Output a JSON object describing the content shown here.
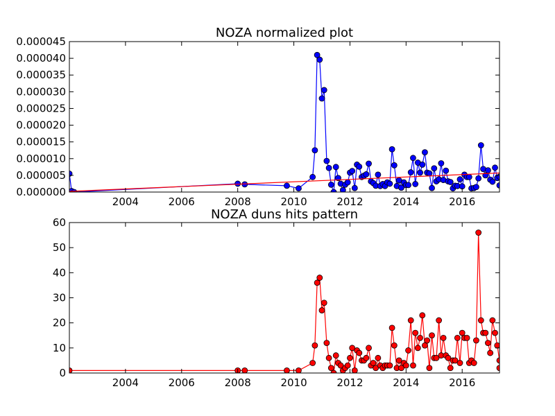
{
  "chart_data": [
    {
      "type": "line",
      "title": "NOZA normalized plot",
      "xlabel": "",
      "ylabel": "",
      "xlim": [
        2002.0,
        2017.33
      ],
      "ylim": [
        0,
        4.5e-05
      ],
      "xticks": [
        2004,
        2006,
        2008,
        2010,
        2012,
        2014,
        2016
      ],
      "xtick_labels": [
        "2004",
        "2006",
        "2008",
        "2010",
        "2012",
        "2014",
        "2016"
      ],
      "yticks": [
        0,
        5e-06,
        1e-05,
        1.5e-05,
        2e-05,
        2.5e-05,
        3e-05,
        3.5e-05,
        4e-05,
        4.5e-05
      ],
      "ytick_labels": [
        "0.000000",
        "0.000005",
        "0.000010",
        "0.000015",
        "0.000020",
        "0.000025",
        "0.000030",
        "0.000035",
        "0.000040",
        "0.000045"
      ],
      "grid": false,
      "series": [
        {
          "color": "#0000ff",
          "marker": "circle",
          "points": [
            [
              2002.0,
              5.5e-06
            ],
            [
              2002.08,
              3e-07
            ],
            [
              2002.17,
              0
            ],
            [
              2008.0,
              2.5e-06
            ],
            [
              2008.25,
              2.3e-06
            ],
            [
              2009.75,
              1.9e-06
            ],
            [
              2010.17,
              1.1e-06
            ],
            [
              2010.67,
              4.5e-06
            ],
            [
              2010.75,
              1.25e-05
            ],
            [
              2010.83,
              4.1e-05
            ],
            [
              2010.92,
              3.96e-05
            ],
            [
              2011.0,
              2.8e-05
            ],
            [
              2011.08,
              3.05e-05
            ],
            [
              2011.17,
              9.3e-06
            ],
            [
              2011.25,
              7.2e-06
            ],
            [
              2011.33,
              2.2e-06
            ],
            [
              2011.42,
              0
            ],
            [
              2011.5,
              7.5e-06
            ],
            [
              2011.58,
              4.2e-06
            ],
            [
              2011.67,
              2.5e-06
            ],
            [
              2011.75,
              6e-07
            ],
            [
              2011.83,
              2.2e-06
            ],
            [
              2011.92,
              2.9e-06
            ],
            [
              2012.0,
              5.8e-06
            ],
            [
              2012.08,
              6.3e-06
            ],
            [
              2012.17,
              1.2e-06
            ],
            [
              2012.25,
              8.2e-06
            ],
            [
              2012.33,
              7.6e-06
            ],
            [
              2012.42,
              4.5e-06
            ],
            [
              2012.5,
              4.9e-06
            ],
            [
              2012.58,
              5.3e-06
            ],
            [
              2012.67,
              8.5e-06
            ],
            [
              2012.75,
              3.2e-06
            ],
            [
              2012.83,
              2.7e-06
            ],
            [
              2012.92,
              1.9e-06
            ],
            [
              2013.0,
              5.2e-06
            ],
            [
              2013.08,
              1.8e-06
            ],
            [
              2013.17,
              2.4e-06
            ],
            [
              2013.25,
              1.8e-06
            ],
            [
              2013.33,
              2.9e-06
            ],
            [
              2013.42,
              2.5e-06
            ],
            [
              2013.5,
              1.28e-05
            ],
            [
              2013.58,
              8e-06
            ],
            [
              2013.67,
              1.8e-06
            ],
            [
              2013.75,
              3.5e-06
            ],
            [
              2013.83,
              1.3e-06
            ],
            [
              2013.92,
              2.9e-06
            ],
            [
              2014.0,
              2.1e-06
            ],
            [
              2014.08,
              2.1e-06
            ],
            [
              2014.17,
              5.9e-06
            ],
            [
              2014.25,
              1.02e-05
            ],
            [
              2014.33,
              2.4e-06
            ],
            [
              2014.42,
              8.8e-06
            ],
            [
              2014.5,
              5.8e-06
            ],
            [
              2014.58,
              8.2e-06
            ],
            [
              2014.67,
              1.19e-05
            ],
            [
              2014.75,
              5.8e-06
            ],
            [
              2014.83,
              5.6e-06
            ],
            [
              2014.92,
              1.2e-06
            ],
            [
              2015.0,
              7.1e-06
            ],
            [
              2015.08,
              3.2e-06
            ],
            [
              2015.17,
              3.8e-06
            ],
            [
              2015.25,
              8.6e-06
            ],
            [
              2015.33,
              3.6e-06
            ],
            [
              2015.42,
              6.4e-06
            ],
            [
              2015.5,
              3.2e-06
            ],
            [
              2015.58,
              3e-06
            ],
            [
              2015.67,
              1.1e-06
            ],
            [
              2015.75,
              1.9e-06
            ],
            [
              2015.83,
              1.8e-06
            ],
            [
              2015.92,
              3.8e-06
            ],
            [
              2016.0,
              1.7e-06
            ],
            [
              2016.08,
              5.2e-06
            ],
            [
              2016.17,
              4.5e-06
            ],
            [
              2016.25,
              4.5e-06
            ],
            [
              2016.33,
              1.1e-06
            ],
            [
              2016.42,
              1.2e-06
            ],
            [
              2016.5,
              1.5e-06
            ],
            [
              2016.58,
              4.1e-06
            ],
            [
              2016.67,
              1.4e-05
            ],
            [
              2016.75,
              6.9e-06
            ],
            [
              2016.83,
              5e-06
            ],
            [
              2016.92,
              6.5e-06
            ],
            [
              2017.0,
              3.7e-06
            ],
            [
              2017.08,
              3.1e-06
            ],
            [
              2017.17,
              7.3e-06
            ],
            [
              2017.25,
              4.2e-06
            ],
            [
              2017.33,
              4.6e-06
            ],
            [
              2017.33,
              2e-06
            ]
          ]
        }
      ],
      "trend_line": {
        "color": "#ff0000",
        "points": [
          [
            2002.0,
            2e-07
          ],
          [
            2017.33,
            5.7e-06
          ]
        ]
      }
    },
    {
      "type": "line",
      "title": "NOZA duns hits pattern",
      "xlabel": "",
      "ylabel": "",
      "xlim": [
        2002.0,
        2017.33
      ],
      "ylim": [
        0,
        60
      ],
      "xticks": [
        2004,
        2006,
        2008,
        2010,
        2012,
        2014,
        2016
      ],
      "xtick_labels": [
        "2004",
        "2006",
        "2008",
        "2010",
        "2012",
        "2014",
        "2016"
      ],
      "yticks": [
        0,
        10,
        20,
        30,
        40,
        50,
        60
      ],
      "ytick_labels": [
        "0",
        "10",
        "20",
        "30",
        "40",
        "50",
        "60"
      ],
      "grid": false,
      "series": [
        {
          "color": "#ff0000",
          "marker": "circle",
          "points": [
            [
              2002.0,
              1
            ],
            [
              2008.0,
              1
            ],
            [
              2008.25,
              1
            ],
            [
              2009.75,
              1
            ],
            [
              2010.17,
              1
            ],
            [
              2010.67,
              4
            ],
            [
              2010.75,
              11
            ],
            [
              2010.83,
              36
            ],
            [
              2010.92,
              38
            ],
            [
              2011.0,
              25
            ],
            [
              2011.08,
              28
            ],
            [
              2011.17,
              12
            ],
            [
              2011.25,
              6
            ],
            [
              2011.33,
              2
            ],
            [
              2011.42,
              0
            ],
            [
              2011.5,
              7
            ],
            [
              2011.58,
              4
            ],
            [
              2011.67,
              3
            ],
            [
              2011.75,
              1
            ],
            [
              2011.83,
              2
            ],
            [
              2011.92,
              3
            ],
            [
              2012.0,
              6
            ],
            [
              2012.08,
              10
            ],
            [
              2012.17,
              1
            ],
            [
              2012.25,
              9
            ],
            [
              2012.33,
              8
            ],
            [
              2012.42,
              5
            ],
            [
              2012.5,
              5
            ],
            [
              2012.58,
              6
            ],
            [
              2012.67,
              10
            ],
            [
              2012.75,
              3
            ],
            [
              2012.83,
              4
            ],
            [
              2012.92,
              2
            ],
            [
              2013.0,
              6
            ],
            [
              2013.08,
              3
            ],
            [
              2013.17,
              2
            ],
            [
              2013.25,
              3
            ],
            [
              2013.33,
              3
            ],
            [
              2013.42,
              3
            ],
            [
              2013.5,
              18
            ],
            [
              2013.58,
              11
            ],
            [
              2013.67,
              2
            ],
            [
              2013.75,
              5
            ],
            [
              2013.83,
              2
            ],
            [
              2013.92,
              4
            ],
            [
              2014.0,
              3
            ],
            [
              2014.08,
              9
            ],
            [
              2014.17,
              21
            ],
            [
              2014.25,
              3
            ],
            [
              2014.33,
              16
            ],
            [
              2014.42,
              10
            ],
            [
              2014.5,
              14
            ],
            [
              2014.58,
              23
            ],
            [
              2014.67,
              11
            ],
            [
              2014.75,
              13
            ],
            [
              2014.83,
              2
            ],
            [
              2014.92,
              15
            ],
            [
              2015.0,
              6
            ],
            [
              2015.08,
              6
            ],
            [
              2015.17,
              21
            ],
            [
              2015.25,
              7
            ],
            [
              2015.33,
              14
            ],
            [
              2015.42,
              7
            ],
            [
              2015.5,
              6
            ],
            [
              2015.58,
              2
            ],
            [
              2015.67,
              5
            ],
            [
              2015.75,
              5
            ],
            [
              2015.83,
              14
            ],
            [
              2015.92,
              4
            ],
            [
              2016.0,
              16
            ],
            [
              2016.08,
              14
            ],
            [
              2016.17,
              14
            ],
            [
              2016.25,
              4
            ],
            [
              2016.33,
              5
            ],
            [
              2016.42,
              4
            ],
            [
              2016.5,
              13
            ],
            [
              2016.58,
              56
            ],
            [
              2016.67,
              21
            ],
            [
              2016.75,
              16
            ],
            [
              2016.83,
              16
            ],
            [
              2016.92,
              12
            ],
            [
              2017.0,
              8
            ],
            [
              2017.08,
              21
            ],
            [
              2017.17,
              16
            ],
            [
              2017.25,
              11
            ],
            [
              2017.33,
              5
            ],
            [
              2017.33,
              2
            ]
          ]
        }
      ]
    }
  ]
}
